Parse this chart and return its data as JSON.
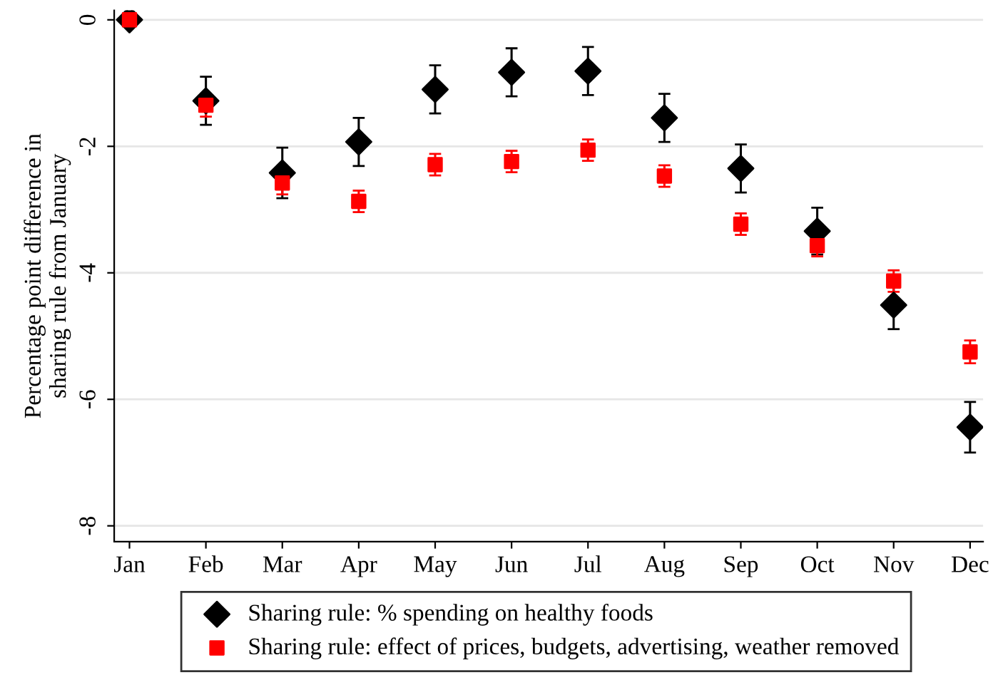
{
  "chart_data": {
    "type": "scatter",
    "ylabel": "Percentage point difference in\nsharing rule from January",
    "categories": [
      "Jan",
      "Feb",
      "Mar",
      "Apr",
      "May",
      "Jun",
      "Jul",
      "Aug",
      "Sep",
      "Oct",
      "Nov",
      "Dec"
    ],
    "series": [
      {
        "name": "Sharing rule: % spending on healthy foods",
        "color": "#000000",
        "marker": "diamond",
        "values": [
          0,
          -1.28,
          -2.42,
          -1.93,
          -1.1,
          -0.83,
          -0.81,
          -1.55,
          -2.35,
          -3.34,
          -4.51,
          -6.44
        ],
        "errors": [
          null,
          0.38,
          0.4,
          0.38,
          0.38,
          0.38,
          0.38,
          0.38,
          0.38,
          0.37,
          0.38,
          0.4
        ]
      },
      {
        "name": "Sharing rule: effect of prices, budgets, advertising, weather removed",
        "color": "#ff0000",
        "marker": "square",
        "values": [
          0,
          -1.35,
          -2.58,
          -2.87,
          -2.29,
          -2.24,
          -2.06,
          -2.47,
          -3.23,
          -3.57,
          -4.13,
          -5.25
        ],
        "errors": [
          null,
          0.18,
          0.18,
          0.17,
          0.17,
          0.17,
          0.17,
          0.17,
          0.17,
          0.17,
          0.17,
          0.18
        ]
      }
    ],
    "ylim": [
      -8.25,
      0.15
    ],
    "yticks": [
      0,
      -2,
      -4,
      -6,
      -8
    ],
    "grid": "y",
    "legend": "bottom"
  }
}
